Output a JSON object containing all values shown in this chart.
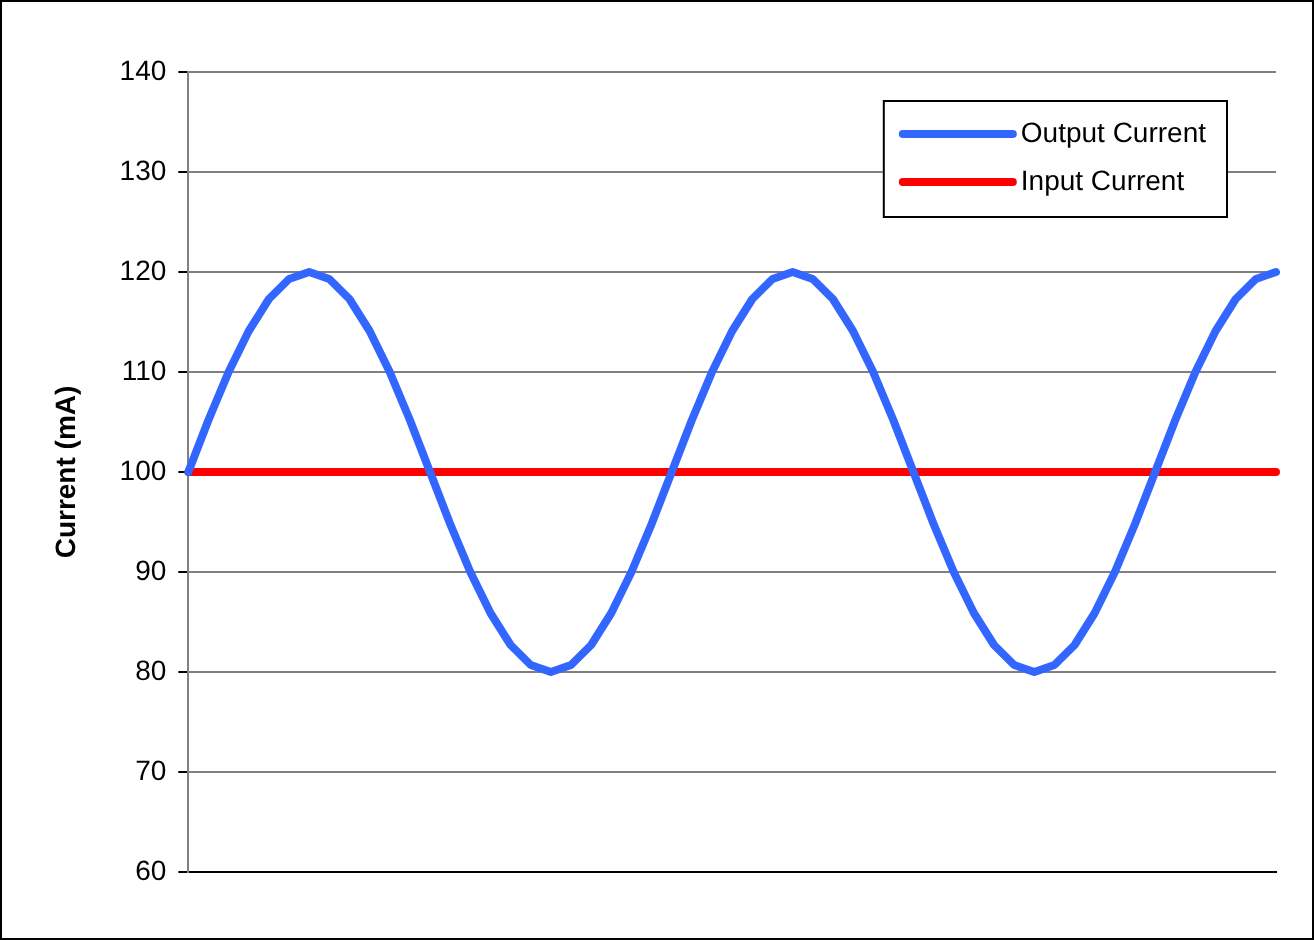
{
  "chart_data": {
    "type": "line",
    "ylabel": "Current (mA)",
    "categories": [
      null,
      null,
      null,
      null,
      null,
      null,
      null,
      null,
      null,
      null,
      null,
      null,
      null,
      null,
      null,
      null,
      null,
      null,
      null,
      null,
      null,
      null,
      null,
      null,
      null,
      null,
      null,
      null,
      null,
      null,
      null,
      null,
      null,
      null,
      null,
      null,
      null,
      null,
      null,
      null,
      null,
      null,
      null,
      null,
      null,
      null,
      null,
      null,
      null,
      null,
      null,
      null,
      null,
      null,
      null
    ],
    "series": [
      {
        "name": "Output Current",
        "color": "#3366ff",
        "values": [
          100,
          105.2,
          110,
          114.1,
          117.3,
          119.3,
          120,
          119.3,
          117.3,
          114.1,
          110,
          105.2,
          100,
          94.8,
          90,
          85.9,
          82.7,
          80.7,
          80,
          80.7,
          82.7,
          85.9,
          90,
          94.8,
          100,
          105.2,
          110,
          114.1,
          117.3,
          119.3,
          120,
          119.3,
          117.3,
          114.1,
          110,
          105.2,
          100,
          94.8,
          90,
          85.9,
          82.7,
          80.7,
          80,
          80.7,
          82.7,
          85.9,
          90,
          94.8,
          100,
          105.2,
          110,
          114.1,
          117.3,
          119.3,
          120
        ]
      },
      {
        "name": "Input Current",
        "color": "#ff0000",
        "values": [
          100,
          100,
          100,
          100,
          100,
          100,
          100,
          100,
          100,
          100,
          100,
          100,
          100,
          100,
          100,
          100,
          100,
          100,
          100,
          100,
          100,
          100,
          100,
          100,
          100,
          100,
          100,
          100,
          100,
          100,
          100,
          100,
          100,
          100,
          100,
          100,
          100,
          100,
          100,
          100,
          100,
          100,
          100,
          100,
          100,
          100,
          100,
          100,
          100,
          100,
          100,
          100,
          100,
          100,
          100
        ]
      }
    ],
    "ylim": [
      60,
      140
    ],
    "yticks": [
      60,
      70,
      80,
      90,
      100,
      110,
      120,
      130,
      140
    ],
    "grid": "y",
    "legend": "top right",
    "tick_labels": "y",
    "marker": "none",
    "line_style": "solid"
  }
}
